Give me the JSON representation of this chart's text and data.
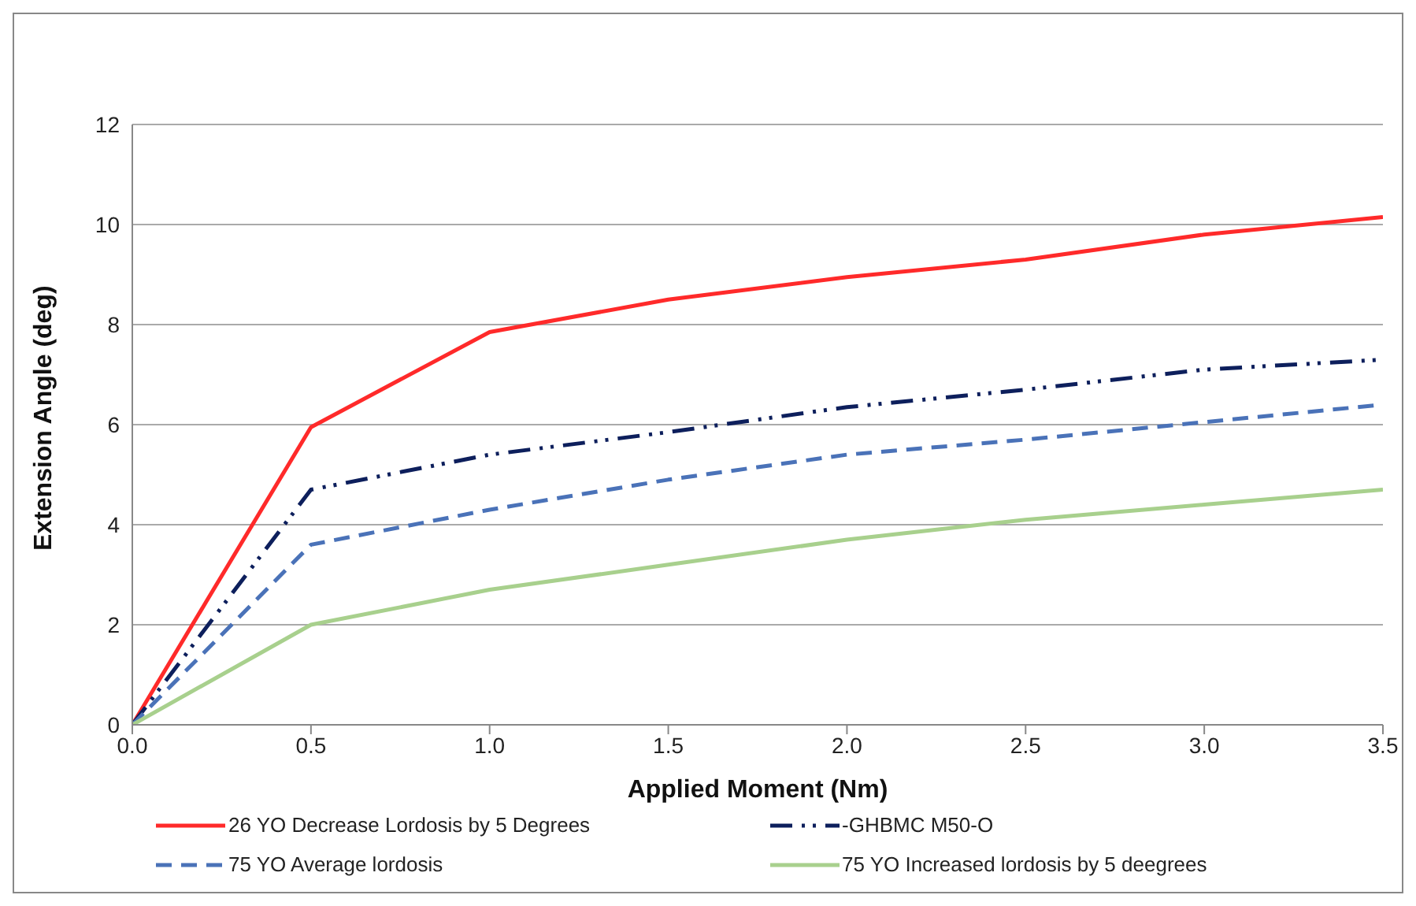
{
  "chart_data": {
    "type": "line",
    "xlabel": "Applied Moment (Nm)",
    "ylabel": "Extension Angle (deg)",
    "x": [
      0,
      0.5,
      1.0,
      1.5,
      2.0,
      2.5,
      3.0,
      3.5
    ],
    "xlim": [
      0,
      3.5
    ],
    "xticks": [
      {
        "value": 0,
        "label": "0.0"
      },
      {
        "value": 0.5,
        "label": "0.5"
      },
      {
        "value": 1,
        "label": "1.0"
      },
      {
        "value": 1.5,
        "label": "1.5"
      },
      {
        "value": 2,
        "label": "2.0"
      },
      {
        "value": 2.5,
        "label": "2.5"
      },
      {
        "value": 3,
        "label": "3.0"
      },
      {
        "value": 3.5,
        "label": "3.5"
      }
    ],
    "ylim": [
      0,
      12
    ],
    "yticks": [
      0,
      2,
      4,
      6,
      8,
      10,
      12
    ],
    "grid": "y",
    "legend": "bottom",
    "marker": "none",
    "series": [
      {
        "name": "26 YO Decrease Lordosis by 5 Degrees",
        "color": "#ff2a2a",
        "line_style": "solid",
        "values": [
          0,
          5.95,
          7.85,
          8.5,
          8.95,
          9.3,
          9.8,
          10.15
        ]
      },
      {
        "name": "-GHBMC M50-O",
        "color": "#0d1f5c",
        "line_style": "dashdot",
        "values": [
          0,
          4.7,
          5.4,
          5.85,
          6.35,
          6.7,
          7.1,
          7.3
        ]
      },
      {
        "name": "75 YO Average lordosis",
        "color": "#4a72b8",
        "line_style": "dashed",
        "values": [
          0,
          3.6,
          4.3,
          4.9,
          5.4,
          5.7,
          6.05,
          6.4
        ]
      },
      {
        "name": "75 YO Increased lordosis by 5 deegrees",
        "color": "#a8d08d",
        "line_style": "solid",
        "values": [
          0,
          2.0,
          2.7,
          3.2,
          3.7,
          4.1,
          4.4,
          4.7
        ]
      }
    ]
  }
}
